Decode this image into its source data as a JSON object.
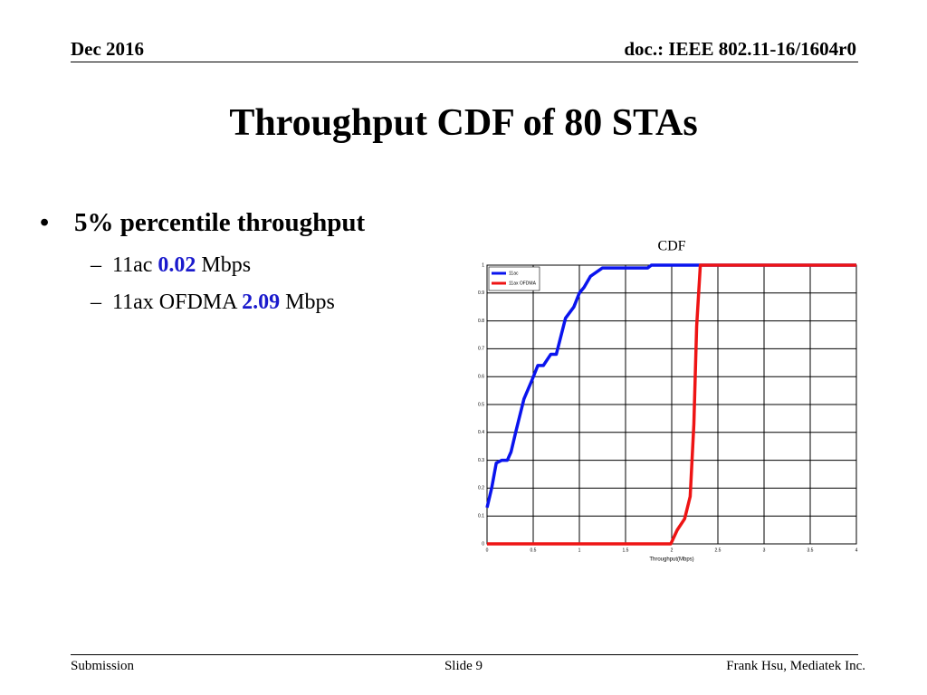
{
  "header": {
    "date": "Dec 2016",
    "doc": "doc.: IEEE 802.11-16/1604r0"
  },
  "title": "Throughput CDF of 80 STAs",
  "bullets": [
    {
      "text": "5% percentile throughput",
      "items": [
        {
          "label": "11ac",
          "value": 0.02,
          "unit": "Mbps"
        },
        {
          "label": "11ax OFDMA",
          "value": 2.09,
          "unit": "Mbps"
        }
      ]
    }
  ],
  "chart_data": {
    "type": "line",
    "title": "CDF",
    "x_label": "Throughput(Mbps)",
    "xlim": [
      0,
      4
    ],
    "xticks": [
      0,
      0.5,
      1,
      1.5,
      2,
      2.5,
      3,
      3.5,
      4
    ],
    "ylim": [
      0,
      1
    ],
    "yticks": [
      0,
      0.1,
      0.2,
      0.3,
      0.4,
      0.5,
      0.6,
      0.7,
      0.8,
      0.9,
      1
    ],
    "grid": true,
    "legend": "upper left",
    "series": [
      {
        "name": "11ac",
        "color": "#0a14ee",
        "x": [
          0,
          0.05,
          0.1,
          0.16,
          0.22,
          0.26,
          0.31,
          0.34,
          0.4,
          0.49,
          0.55,
          0.61,
          0.69,
          0.75,
          0.85,
          0.94,
          1.0,
          1.05,
          1.12,
          1.25,
          1.74,
          1.78,
          4
        ],
        "values": [
          0.13,
          0.2,
          0.29,
          0.3,
          0.3,
          0.33,
          0.4,
          0.44,
          0.52,
          0.59,
          0.64,
          0.64,
          0.68,
          0.68,
          0.81,
          0.85,
          0.9,
          0.92,
          0.96,
          0.99,
          0.99,
          1.0,
          1.0
        ]
      },
      {
        "name": "11ax OFDMA",
        "color": "#ee1414",
        "x": [
          0,
          1.99,
          2.06,
          2.14,
          2.2,
          2.24,
          2.27,
          2.31,
          4
        ],
        "values": [
          0,
          0,
          0.05,
          0.09,
          0.17,
          0.43,
          0.78,
          1.0,
          1.0
        ]
      }
    ]
  },
  "footer": {
    "left": "Submission",
    "center": "Slide 9",
    "right": "Frank Hsu, Mediatek Inc."
  }
}
